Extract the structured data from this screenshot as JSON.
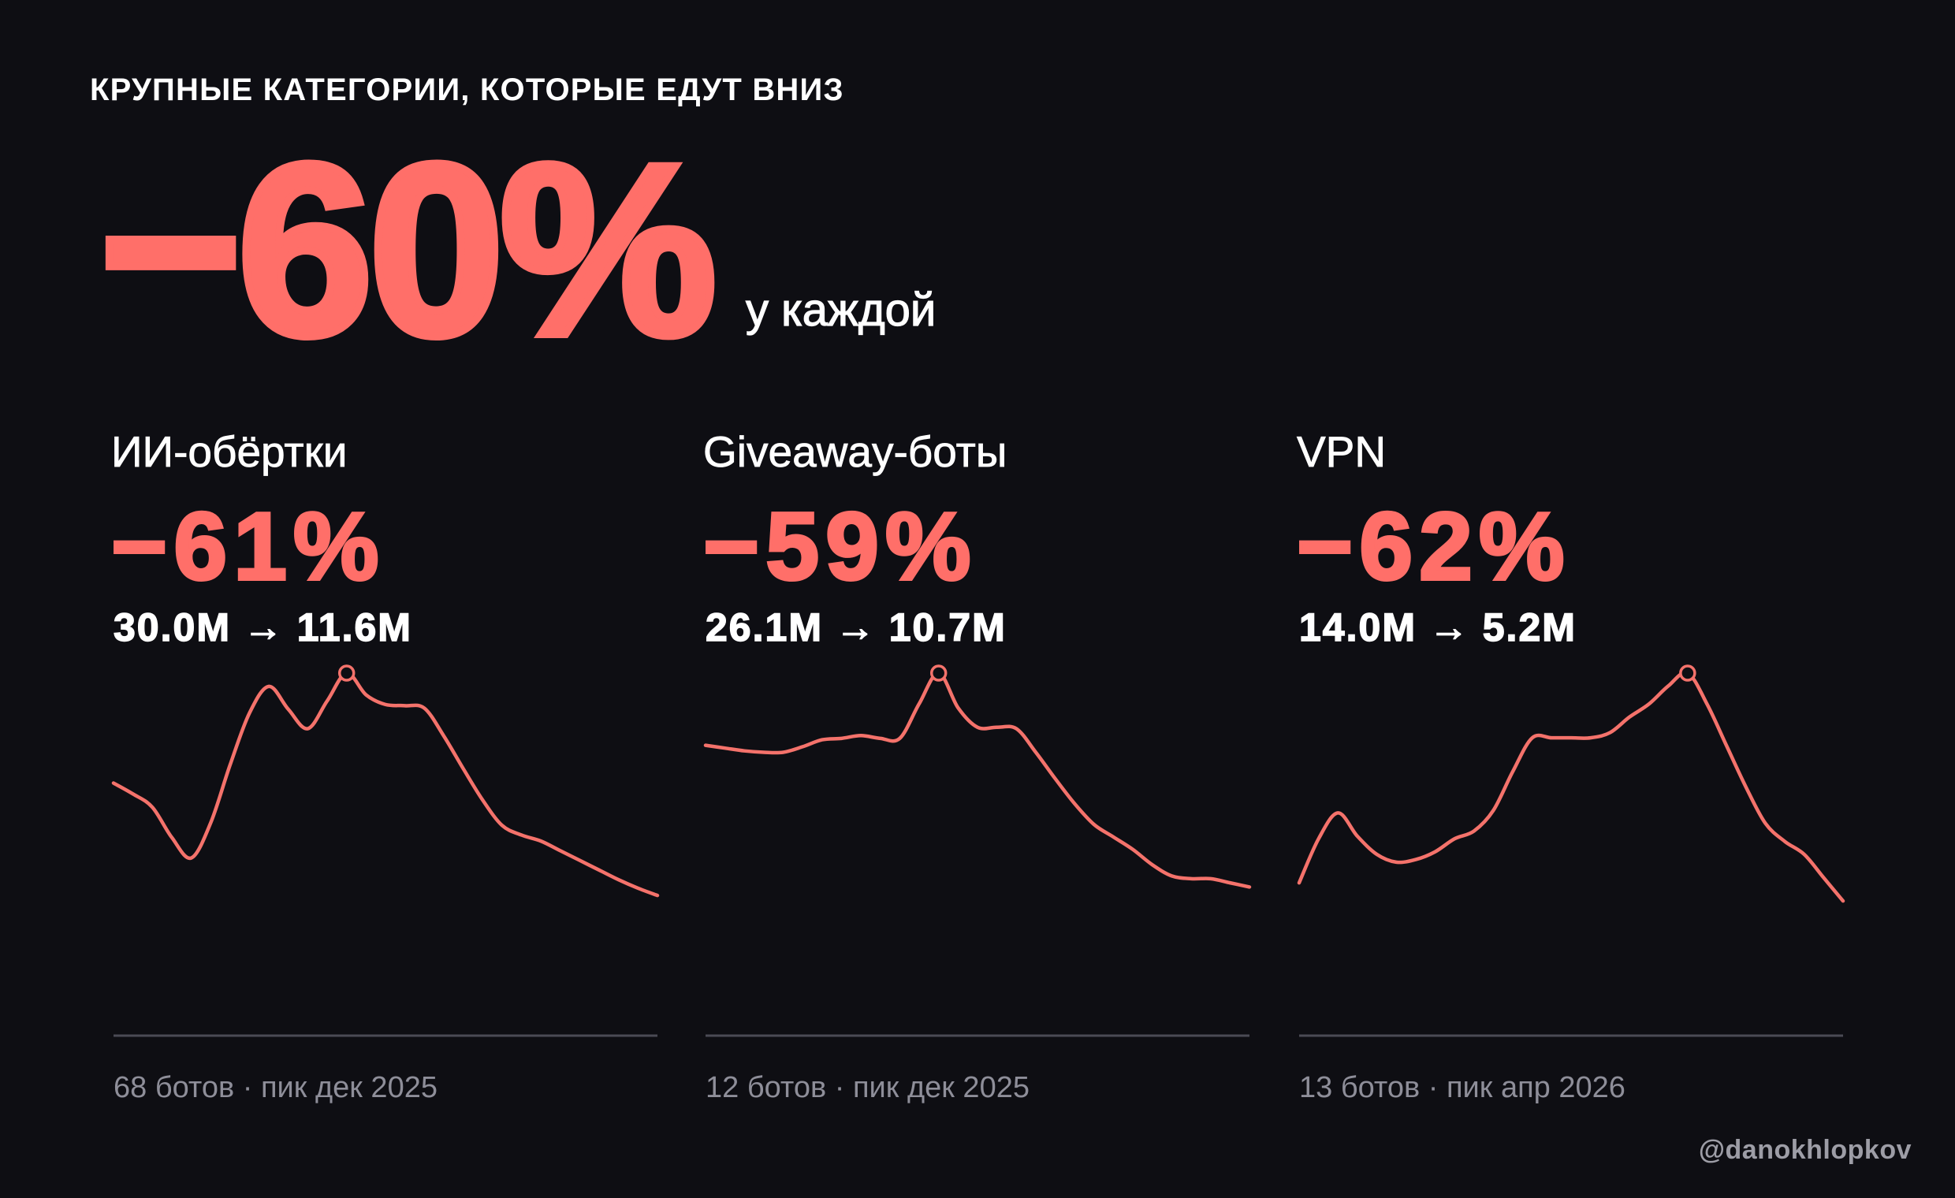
{
  "headline": {
    "label": "КРУПНЫЕ КАТЕГОРИИ, КОТОРЫЕ ЕДУТ ВНИЗ",
    "value": "−60%",
    "suffix": "у каждой"
  },
  "watermark": "@danokhlopkov",
  "colors": {
    "background": "#0e0e13",
    "accent": "#ff6f69",
    "line": "#f4726b",
    "text": "#ffffff",
    "muted": "#8e8e99",
    "axis": "#4a4a54",
    "watermark": "#9d9da6"
  },
  "chart_data": [
    {
      "type": "line",
      "title": "ИИ-обёртки",
      "change": "−61%",
      "range": "30.0M → 11.6M",
      "footer": "68 ботов · пик дек 2025",
      "ylim": [
        0,
        30.0
      ],
      "grid": false,
      "peak_marker": true,
      "values": [
        20.9,
        20.0,
        18.9,
        16.4,
        14.7,
        17.6,
        22.4,
        26.7,
        28.9,
        27.0,
        25.4,
        27.7,
        30.0,
        28.2,
        27.4,
        27.3,
        27.1,
        24.8,
        22.1,
        19.5,
        17.4,
        16.6,
        16.1,
        15.3,
        14.5,
        13.7,
        12.9,
        12.2,
        11.6
      ]
    },
    {
      "type": "line",
      "title": "Giveaway-боты",
      "change": "−59%",
      "range": "26.1M → 10.7M",
      "footer": "12 ботов · пик дек 2025",
      "ylim": [
        0,
        26.1
      ],
      "grid": false,
      "peak_marker": true,
      "values": [
        20.9,
        20.7,
        20.5,
        20.4,
        20.4,
        20.8,
        21.3,
        21.4,
        21.6,
        21.4,
        21.4,
        23.9,
        26.1,
        23.6,
        22.2,
        22.2,
        22.1,
        20.4,
        18.5,
        16.7,
        15.2,
        14.3,
        13.4,
        12.3,
        11.5,
        11.3,
        11.3,
        11.0,
        10.7
      ]
    },
    {
      "type": "line",
      "title": "VPN",
      "change": "−62%",
      "range": "14.0M → 5.2M",
      "footer": "13 ботов · пик апр 2026",
      "ylim": [
        0,
        14.0
      ],
      "grid": false,
      "peak_marker": true,
      "values": [
        5.9,
        7.6,
        8.6,
        7.7,
        7.0,
        6.7,
        6.8,
        7.1,
        7.6,
        7.9,
        8.7,
        10.2,
        11.5,
        11.5,
        11.5,
        11.5,
        11.7,
        12.3,
        12.8,
        13.5,
        14.0,
        12.8,
        11.2,
        9.6,
        8.2,
        7.5,
        7.0,
        6.1,
        5.2
      ]
    }
  ]
}
